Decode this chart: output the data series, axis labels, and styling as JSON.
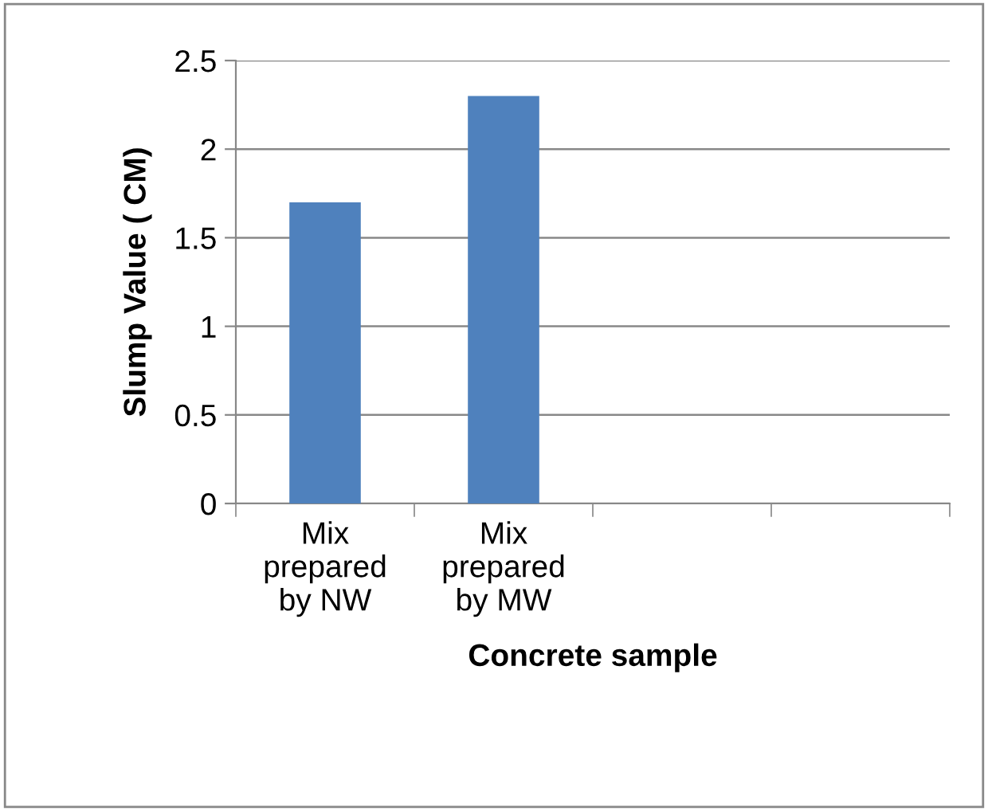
{
  "chart_data": {
    "type": "bar",
    "xlabel": "Concrete sample",
    "ylabel": "Slump Value ( CM)",
    "categories": [
      "Mix\nprepared\nby NW",
      "Mix\nprepared\nby MW",
      null,
      null
    ],
    "values": [
      1.7,
      2.3,
      null,
      null
    ],
    "color": "#4f81bd",
    "ylim": [
      0,
      2.5
    ],
    "yticks": [
      0,
      0.5,
      1,
      1.5,
      2,
      2.5
    ],
    "grid": "y",
    "legend": false
  }
}
